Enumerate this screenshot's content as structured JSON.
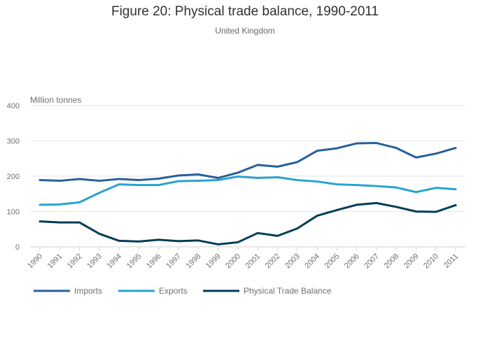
{
  "chart_data": {
    "type": "line",
    "title": "Figure 20: Physical trade balance, 1990-2011",
    "subtitle": "United Kingdom",
    "xlabel": "",
    "ylabel": "Million tonnes",
    "ylim": [
      0,
      400
    ],
    "yticks": [
      "0",
      "100",
      "200",
      "300",
      "400"
    ],
    "categories": [
      "1990",
      "1991",
      "1992",
      "1993",
      "1994",
      "1995",
      "1996",
      "1997",
      "1998",
      "1999",
      "2000",
      "2001",
      "2002",
      "2003",
      "2004",
      "2005",
      "2006",
      "2007",
      "2008",
      "2009",
      "2010",
      "2011"
    ],
    "series": [
      {
        "name": "Imports",
        "color": "#27609a",
        "values": [
          189,
          187,
          192,
          187,
          192,
          189,
          193,
          202,
          205,
          195,
          210,
          232,
          227,
          240,
          272,
          279,
          293,
          294,
          280,
          253,
          264,
          280
        ]
      },
      {
        "name": "Exports",
        "color": "#2ba2cf",
        "values": [
          119,
          120,
          126,
          153,
          177,
          175,
          175,
          186,
          187,
          189,
          199,
          195,
          197,
          189,
          185,
          177,
          175,
          172,
          168,
          155,
          167,
          163
        ]
      },
      {
        "name": "Physical Trade Balance",
        "color": "#003c57",
        "values": [
          72,
          69,
          69,
          37,
          17,
          15,
          20,
          16,
          18,
          7,
          13,
          39,
          31,
          52,
          88,
          104,
          119,
          124,
          113,
          100,
          99,
          118
        ]
      }
    ],
    "grid": true,
    "legend_position": "bottom-left"
  }
}
